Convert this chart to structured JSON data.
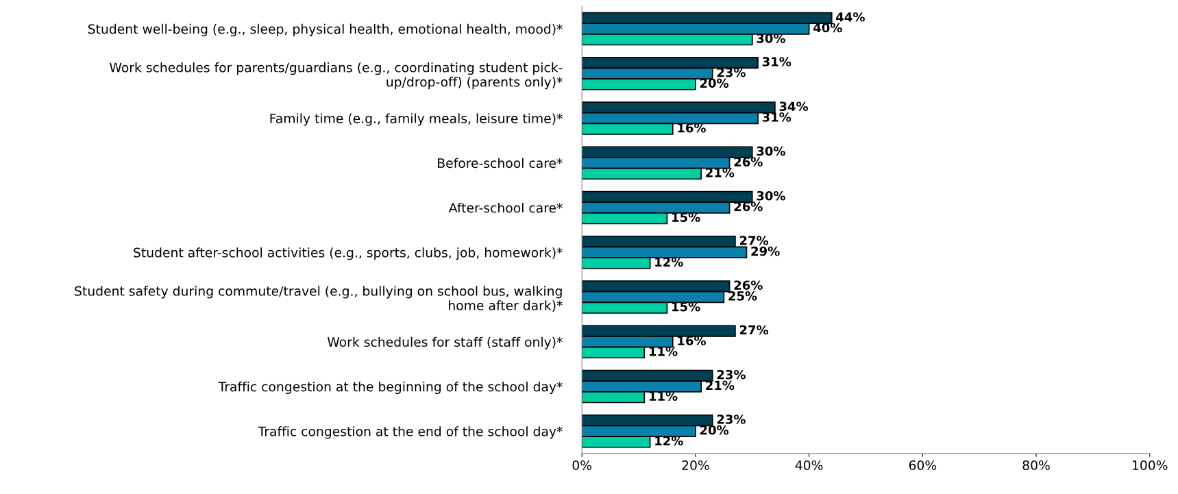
{
  "chart_data": {
    "type": "bar",
    "orientation": "horizontal",
    "categories": [
      "Student well-being (e.g., sleep, physical health, emotional health, mood)*",
      "Work schedules for parents/guardians (e.g., coordinating student pick-\nup/drop-off) (parents only)*",
      "Family time (e.g., family meals, leisure time)*",
      "Before-school care*",
      "After-school care*",
      "Student after-school activities (e.g., sports, clubs, job, homework)*",
      "Student safety during commute/travel (e.g., bullying on school bus, walking\nhome after dark)*",
      "Work schedules for staff (staff only)*",
      "Traffic congestion at the beginning of the school day*",
      "Traffic congestion at the end of the school day*"
    ],
    "series": [
      {
        "color": "#003f54",
        "values": [
          44,
          31,
          34,
          30,
          30,
          27,
          26,
          27,
          23,
          23
        ],
        "value_labels": [
          "44%",
          "31%",
          "34%",
          "30%",
          "30%",
          "27%",
          "26%",
          "27%",
          "23%",
          "23%"
        ]
      },
      {
        "color": "#0a80aa",
        "values": [
          40,
          23,
          31,
          26,
          26,
          29,
          25,
          16,
          21,
          20
        ],
        "value_labels": [
          "40%",
          "23%",
          "31%",
          "26%",
          "26%",
          "29%",
          "25%",
          "16%",
          "21%",
          "20%"
        ]
      },
      {
        "color": "#00cfa3",
        "values": [
          30,
          20,
          16,
          21,
          15,
          12,
          15,
          11,
          11,
          12
        ],
        "value_labels": [
          "30%",
          "20%",
          "16%",
          "21%",
          "15%",
          "12%",
          "15%",
          "11%",
          "11%",
          "12%"
        ]
      }
    ],
    "xlim": [
      0,
      100
    ],
    "xticks": [
      {
        "value": 0,
        "label": "0%"
      },
      {
        "value": 20,
        "label": "20%"
      },
      {
        "value": 40,
        "label": "40%"
      },
      {
        "value": 60,
        "label": "60%"
      },
      {
        "value": 80,
        "label": "80%"
      },
      {
        "value": 100,
        "label": "100%"
      }
    ],
    "grid": false,
    "legend": false
  }
}
